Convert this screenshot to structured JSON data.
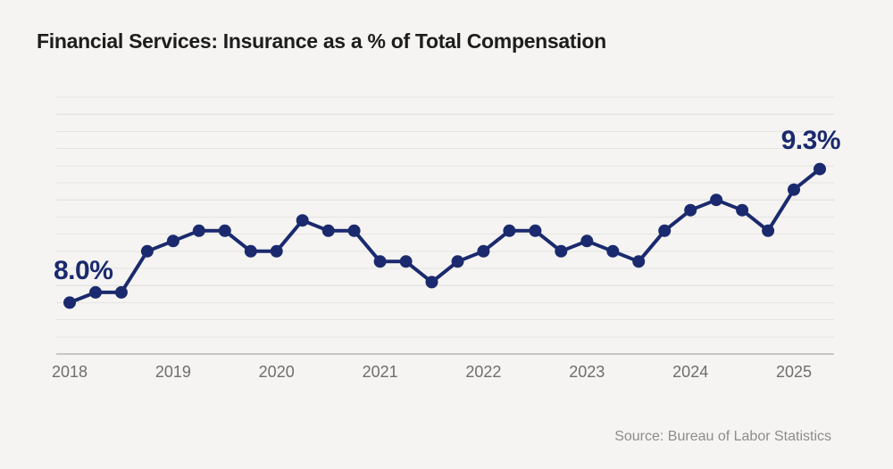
{
  "page": {
    "background_color": "#f5f4f2"
  },
  "header": {
    "title": "Financial Services: Insurance as a % of Total Compensation",
    "title_color": "#1d1d1d"
  },
  "chart_data": {
    "type": "line",
    "title": "Financial Services: Insurance as a % of Total Compensation",
    "series_name": "Insurance as a % of total compensation",
    "unit": "%",
    "x": [
      "2018 Q1",
      "2018 Q2",
      "2018 Q3",
      "2018 Q4",
      "2019 Q1",
      "2019 Q2",
      "2019 Q3",
      "2019 Q4",
      "2020 Q1",
      "2020 Q2",
      "2020 Q3",
      "2020 Q4",
      "2021 Q1",
      "2021 Q2",
      "2021 Q3",
      "2021 Q4",
      "2022 Q1",
      "2022 Q2",
      "2022 Q3",
      "2022 Q4",
      "2023 Q1",
      "2023 Q2",
      "2023 Q3",
      "2023 Q4",
      "2024 Q1",
      "2024 Q2",
      "2024 Q3",
      "2024 Q4",
      "2025 Q1",
      "2025 Q2"
    ],
    "values": [
      8.0,
      8.1,
      8.1,
      8.5,
      8.6,
      8.7,
      8.7,
      8.5,
      8.5,
      8.8,
      8.7,
      8.7,
      8.4,
      8.4,
      8.2,
      8.4,
      8.5,
      8.7,
      8.7,
      8.5,
      8.6,
      8.5,
      8.4,
      8.7,
      8.9,
      9.0,
      8.9,
      8.7,
      9.1,
      9.3
    ],
    "ylim": [
      7.5,
      10.0
    ],
    "grid_on": true,
    "gridline_count": 16,
    "x_tick_labels": [
      "2018",
      "2019",
      "2020",
      "2021",
      "2022",
      "2023",
      "2024",
      "2025"
    ],
    "quarters_per_tick": 4,
    "legend": "none",
    "start_label": "8.0%",
    "end_label": "9.3%",
    "colors": {
      "line": "#1b2a6e",
      "point": "#1b2a6e",
      "grid": "#e4e4e1",
      "axis": "#c6c6c3",
      "tick_label": "#6e6e6e",
      "annotation": "#1b2a6e"
    }
  },
  "footer": {
    "source": "Source: Bureau of Labor Statistics",
    "source_color": "#8c8c8c"
  }
}
